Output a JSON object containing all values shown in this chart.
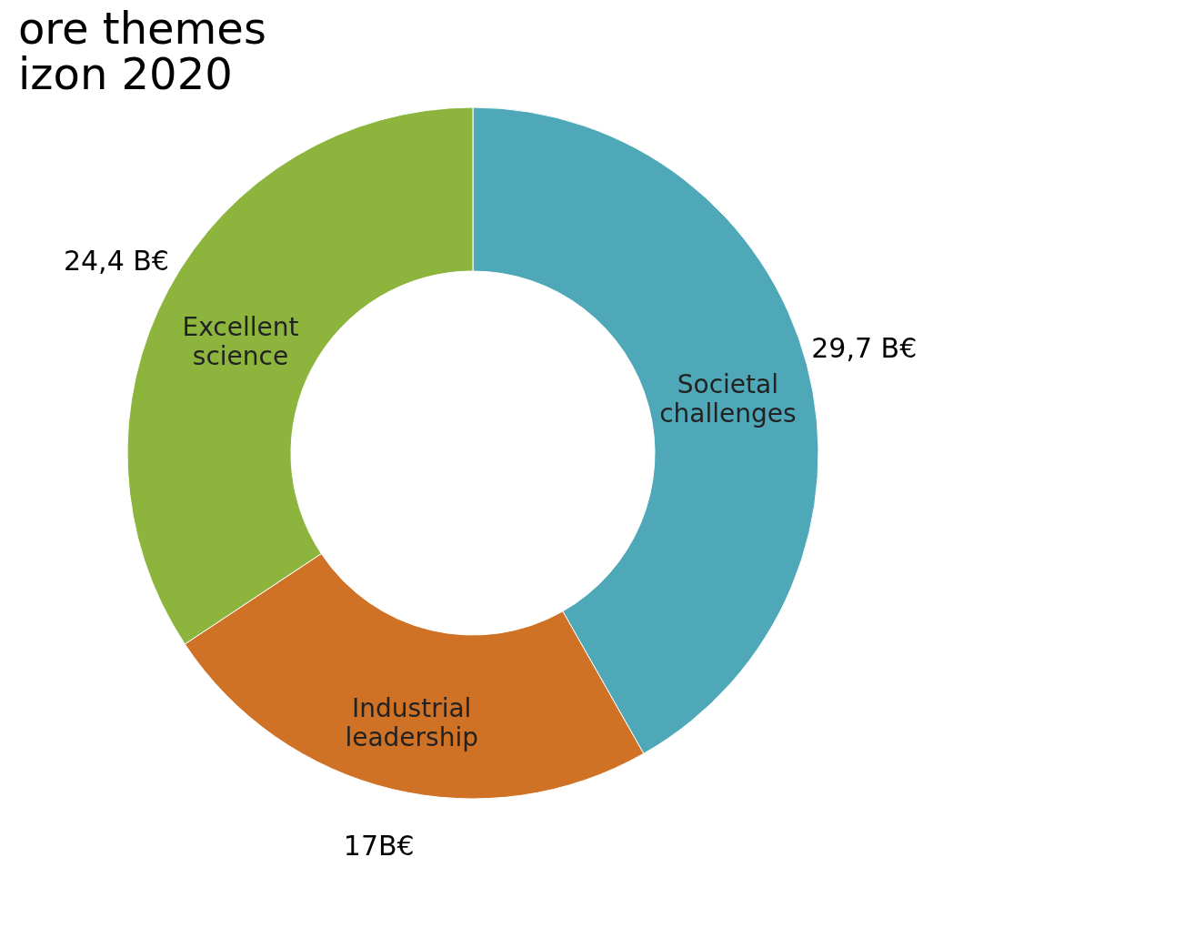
{
  "chart_data": {
    "type": "donut",
    "title": "ore themes\nizon 2020",
    "categories": [
      "Societal challenges",
      "Industrial leadership",
      "Excellent science"
    ],
    "values": [
      29.7,
      17,
      24.4
    ],
    "value_labels": [
      "29,7 B€",
      "17B€",
      "24,4 B€"
    ],
    "colors": [
      "#4fa8b8",
      "#d07226",
      "#8db53e"
    ]
  }
}
